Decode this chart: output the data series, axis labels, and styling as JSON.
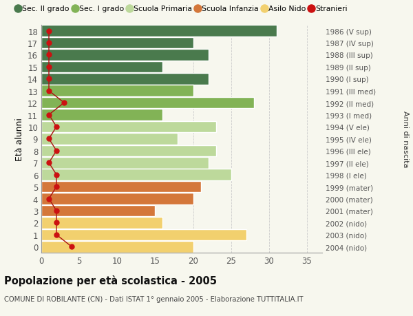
{
  "ages": [
    18,
    17,
    16,
    15,
    14,
    13,
    12,
    11,
    10,
    9,
    8,
    7,
    6,
    5,
    4,
    3,
    2,
    1,
    0
  ],
  "years": [
    "1986 (V sup)",
    "1987 (IV sup)",
    "1988 (III sup)",
    "1989 (II sup)",
    "1990 (I sup)",
    "1991 (III med)",
    "1992 (II med)",
    "1993 (I med)",
    "1994 (V ele)",
    "1995 (IV ele)",
    "1996 (III ele)",
    "1997 (II ele)",
    "1998 (I ele)",
    "1999 (mater)",
    "2000 (mater)",
    "2001 (mater)",
    "2002 (nido)",
    "2003 (nido)",
    "2004 (nido)"
  ],
  "values": [
    31,
    20,
    22,
    16,
    22,
    20,
    28,
    16,
    23,
    18,
    23,
    22,
    25,
    21,
    20,
    15,
    16,
    27,
    20
  ],
  "bar_colors": [
    "#4a7a4d",
    "#4a7a4d",
    "#4a7a4d",
    "#4a7a4d",
    "#4a7a4d",
    "#82b356",
    "#82b356",
    "#82b356",
    "#bdd99b",
    "#bdd99b",
    "#bdd99b",
    "#bdd99b",
    "#bdd99b",
    "#d4773a",
    "#d4773a",
    "#d4773a",
    "#f2d06e",
    "#f2d06e",
    "#f2d06e"
  ],
  "stranieri": [
    1,
    1,
    1,
    1,
    1,
    1,
    3,
    1,
    2,
    1,
    2,
    1,
    2,
    2,
    1,
    2,
    2,
    2,
    4
  ],
  "legend_labels": [
    "Sec. II grado",
    "Sec. I grado",
    "Scuola Primaria",
    "Scuola Infanzia",
    "Asilo Nido",
    "Stranieri"
  ],
  "legend_colors": [
    "#4a7a4d",
    "#82b356",
    "#bdd99b",
    "#d4773a",
    "#f2d06e",
    "#cc1111"
  ],
  "ylabel_left": "Età alunni",
  "ylabel_right": "Anni di nascita",
  "title_bold": "Popolazione per età scolastica - 2005",
  "subtitle": "COMUNE DI ROBILANTE (CN) - Dati ISTAT 1° gennaio 2005 - Elaborazione TUTTITALIA.IT",
  "xlim": [
    0,
    37
  ],
  "background_color": "#f7f7ee"
}
